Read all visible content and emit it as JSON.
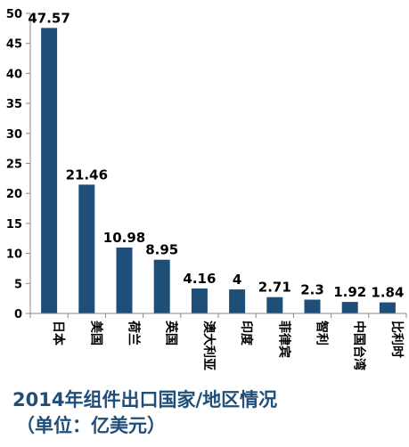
{
  "chart_data": {
    "type": "bar",
    "title": "2014年组件出口国家/地区情况",
    "subtitle": "（单位：亿美元）",
    "xlabel": "",
    "ylabel": "",
    "categories": [
      "日本",
      "美国",
      "荷兰",
      "英国",
      "澳大利亚",
      "印度",
      "菲律宾",
      "智利",
      "中国台湾",
      "比利时"
    ],
    "values": [
      47.57,
      21.46,
      10.98,
      8.95,
      4.16,
      4,
      2.71,
      2.3,
      1.92,
      1.84
    ],
    "value_labels": [
      "47.57",
      "21.46",
      "10.98",
      "8.95",
      "4.16",
      "4",
      "2.71",
      "2.3",
      "1.92",
      "1.84"
    ],
    "ylim": [
      0,
      50
    ],
    "yticks": [
      0,
      5,
      10,
      15,
      20,
      25,
      30,
      35,
      40,
      45,
      50
    ],
    "grid": false,
    "legend": "none",
    "colors": {
      "bar": "#1f4e79",
      "axis": "#888888",
      "text": "#000000",
      "caption": "#1f4e79"
    }
  }
}
